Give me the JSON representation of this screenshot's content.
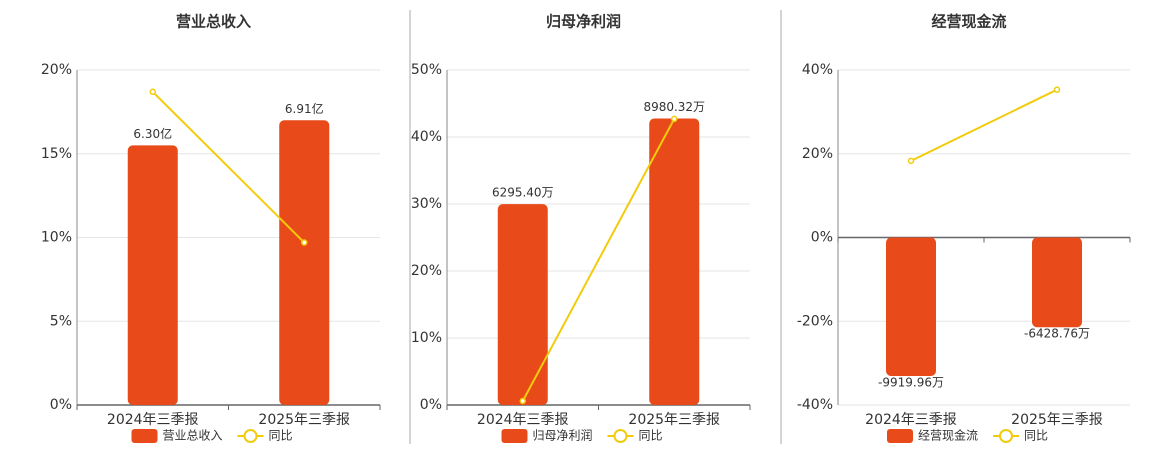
{
  "chart_data": [
    {
      "type": "bar",
      "title": "营业总收入",
      "categories": [
        "2024年三季报",
        "2025年三季报"
      ],
      "series": [
        {
          "name": "营业总收入",
          "type": "bar",
          "color": "#e84a1a",
          "axis": "y2",
          "values": [
            6.3,
            6.91
          ],
          "value_labels": [
            "6.30亿",
            "6.91亿"
          ]
        },
        {
          "name": "同比",
          "type": "line",
          "color": "#f2cc0c",
          "values": [
            18.7,
            9.7
          ]
        }
      ],
      "ylim": [
        0,
        20
      ],
      "yticks": [
        {
          "value": 0,
          "label": "0%"
        },
        {
          "value": 5,
          "label": "5%"
        },
        {
          "value": 10,
          "label": "10%"
        },
        {
          "value": 15,
          "label": "15%"
        },
        {
          "value": 20,
          "label": "20%"
        }
      ],
      "y2lim": [
        0,
        8.13
      ],
      "grid": true
    },
    {
      "type": "bar",
      "title": "归母净利润",
      "categories": [
        "2024年三季报",
        "2025年三季报"
      ],
      "series": [
        {
          "name": "归母净利润",
          "type": "bar",
          "color": "#e84a1a",
          "axis": "y2",
          "values": [
            6295.4,
            8980.32
          ],
          "value_labels": [
            "6295.40万",
            "8980.32万"
          ]
        },
        {
          "name": "同比",
          "type": "line",
          "color": "#f2cc0c",
          "values": [
            0.6,
            42.7
          ]
        }
      ],
      "ylim": [
        0,
        50
      ],
      "yticks": [
        {
          "value": 0,
          "label": "0%"
        },
        {
          "value": 10,
          "label": "10%"
        },
        {
          "value": 20,
          "label": "20%"
        },
        {
          "value": 30,
          "label": "30%"
        },
        {
          "value": 40,
          "label": "40%"
        },
        {
          "value": 50,
          "label": "50%"
        }
      ],
      "y2lim": [
        0,
        10500
      ],
      "grid": true
    },
    {
      "type": "bar",
      "title": "经营现金流",
      "categories": [
        "2024年三季报",
        "2025年三季报"
      ],
      "series": [
        {
          "name": "经营现金流",
          "type": "bar",
          "color": "#e84a1a",
          "axis": "y2",
          "values": [
            -9919.96,
            -6428.76
          ],
          "value_labels": [
            "-9919.96万",
            "-6428.76万"
          ]
        },
        {
          "name": "同比",
          "type": "line",
          "color": "#f2cc0c",
          "values": [
            18.3,
            35.3
          ]
        }
      ],
      "ylim": [
        -40,
        40
      ],
      "yticks": [
        {
          "value": -40,
          "label": "-40%"
        },
        {
          "value": -20,
          "label": "-20%"
        },
        {
          "value": 0,
          "label": "0%"
        },
        {
          "value": 20,
          "label": "20%"
        },
        {
          "value": 40,
          "label": "40%"
        }
      ],
      "y2lim": [
        -12000,
        12000
      ],
      "grid": true
    }
  ]
}
